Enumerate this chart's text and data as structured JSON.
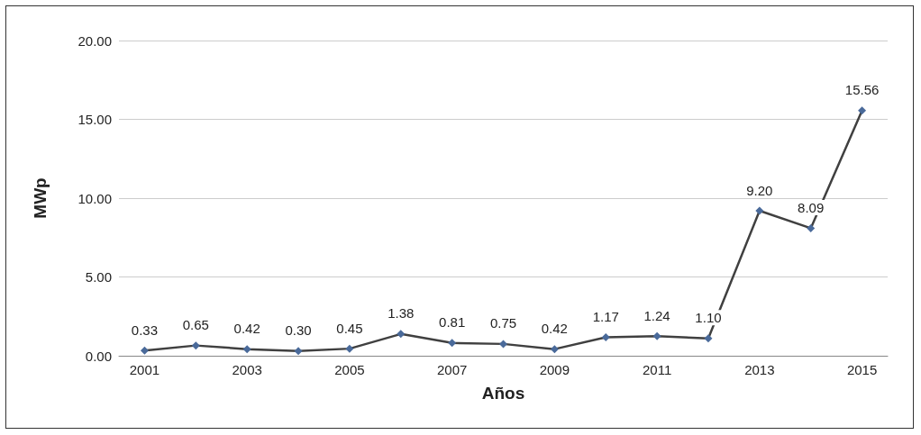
{
  "chart_data": {
    "type": "line",
    "xlabel": "Años",
    "ylabel": "MWp",
    "categories": [
      "2001",
      null,
      "2003",
      null,
      "2005",
      null,
      "2007",
      null,
      "2009",
      null,
      "2011",
      null,
      "2013",
      null,
      "2015"
    ],
    "series": [
      {
        "color": "#4a6a9a",
        "values": [
          0.33,
          0.65,
          0.42,
          0.3,
          0.45,
          1.38,
          0.81,
          0.75,
          0.42,
          1.17,
          1.24,
          1.1,
          9.2,
          8.09,
          15.56
        ],
        "value_labels": [
          "0.33",
          "0.65",
          "0.42",
          "0.30",
          "0.45",
          "1.38",
          "0.81",
          "0.75",
          "0.42",
          "1.17",
          "1.24",
          "1.10",
          "9.20",
          "8.09",
          "15.56"
        ]
      }
    ],
    "ylim": [
      0,
      20
    ],
    "yticks": [
      {
        "value": 0,
        "label": "0.00"
      },
      {
        "value": 5,
        "label": "5.00"
      },
      {
        "value": 10,
        "label": "10.00"
      },
      {
        "value": 15,
        "label": "15.00"
      },
      {
        "value": 20,
        "label": "20.00"
      }
    ],
    "grid": "y",
    "marker": "diamond",
    "line_style": "solid"
  }
}
